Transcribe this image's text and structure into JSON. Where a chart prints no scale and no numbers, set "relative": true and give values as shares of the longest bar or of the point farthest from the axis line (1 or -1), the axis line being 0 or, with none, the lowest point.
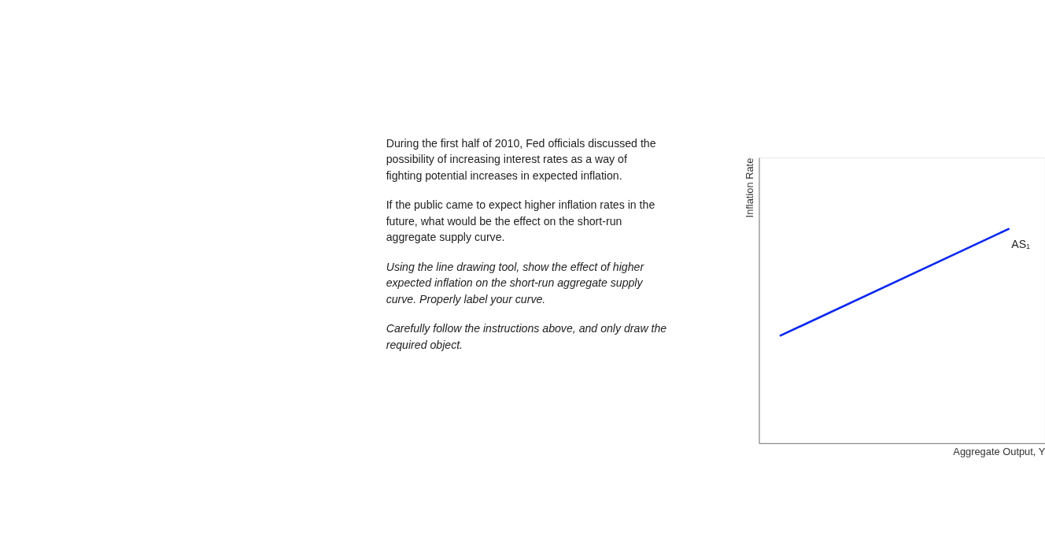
{
  "chart_data": {
    "type": "line",
    "relative": true,
    "xlabel": "Aggregate Output, Y",
    "ylabel": "Inflation Rate",
    "categories": [
      null,
      null
    ],
    "series": [
      {
        "name": "AS₁",
        "color": "#0a28f0",
        "values": [
          0.5,
          1
        ]
      }
    ],
    "legend": false,
    "grid": false,
    "marker": "none",
    "line_style": "solid",
    "annotations": [
      "During the first half of 2010, Fed officials discussed the possibility of increasing interest rates as a way of fighting potential increases in expected inflation.",
      "If the public came to expect higher inflation rates in the future, what would be the effect on the short-run aggregate supply curve.",
      "Using the line drawing tool, show the effect of higher expected inflation on the short-run aggregate supply curve. Properly label your curve.",
      "Carefully follow the instructions above, and only draw the required object."
    ]
  }
}
